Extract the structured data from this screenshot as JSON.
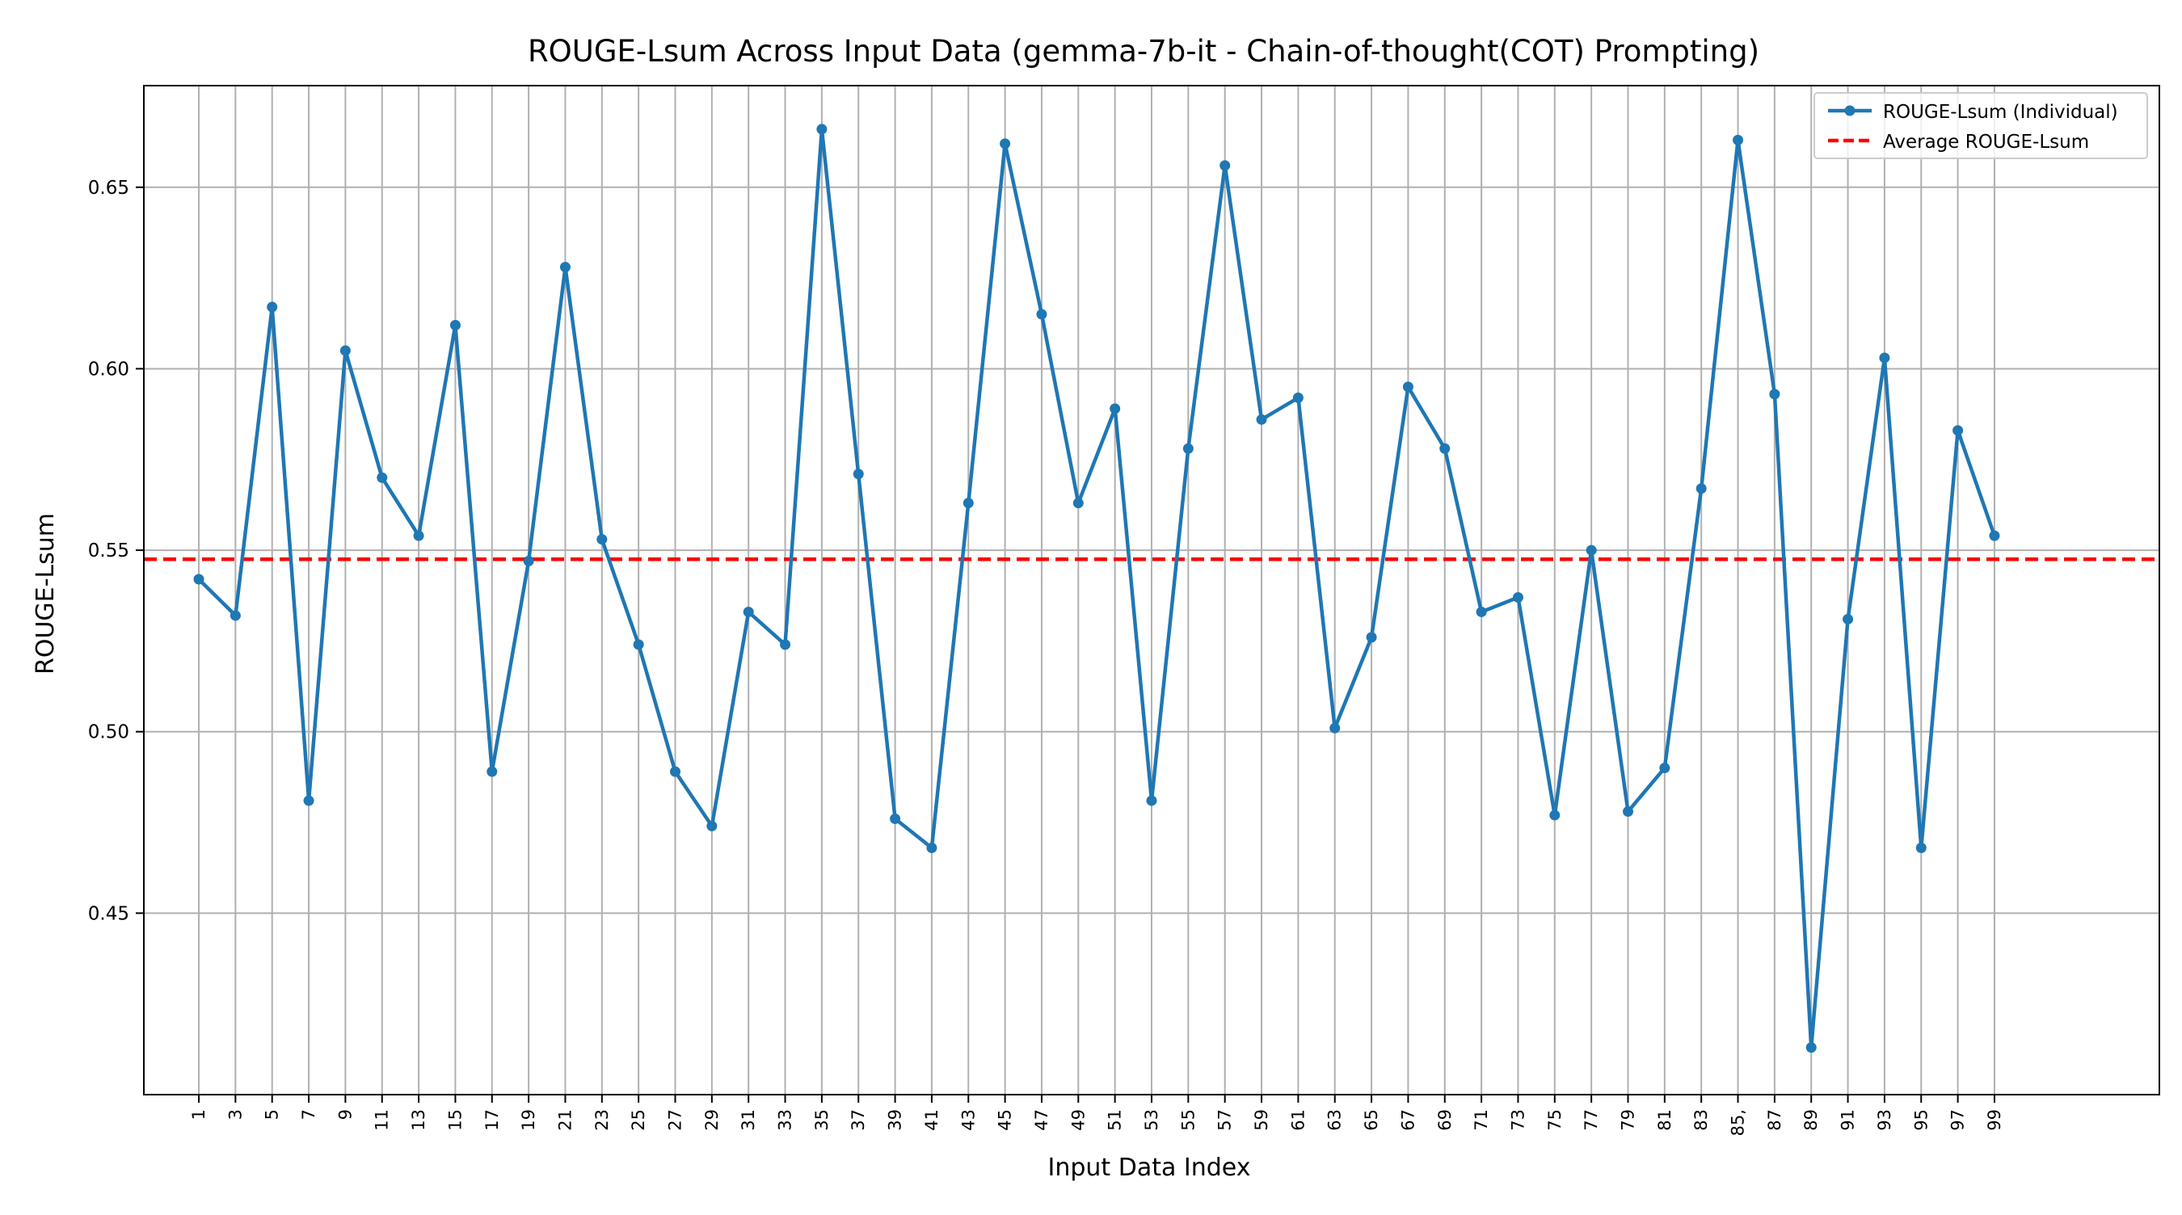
{
  "chart_data": {
    "type": "line",
    "title": "ROUGE-Lsum Across Input Data (gemma-7b-it - Chain-of-thought(COT) Prompting)",
    "xlabel": "Input Data Index",
    "ylabel": "ROUGE-Lsum",
    "x": [
      1,
      3,
      5,
      7,
      9,
      11,
      13,
      15,
      17,
      19,
      21,
      23,
      25,
      27,
      29,
      31,
      33,
      35,
      37,
      39,
      41,
      43,
      45,
      47,
      49,
      51,
      53,
      55,
      57,
      59,
      61,
      63,
      65,
      67,
      69,
      71,
      73,
      75,
      77,
      79,
      81,
      83,
      85,
      87,
      89,
      91,
      93,
      95,
      97,
      99
    ],
    "xticks": [
      "1",
      "3",
      "5",
      "7",
      "9",
      "11",
      "13",
      "15",
      "17",
      "19",
      "21",
      "23",
      "25",
      "27",
      "29",
      "31",
      "33",
      "35",
      "37",
      "39",
      "41",
      "43",
      "45",
      "47",
      "49",
      "51",
      "53",
      "55",
      "57",
      "59",
      "61",
      "63",
      "65",
      "67",
      "69",
      "71",
      "73",
      "75",
      "77",
      "79",
      "81",
      "83",
      "85,",
      "87",
      "89",
      "91",
      "93",
      "95",
      "97",
      "99"
    ],
    "xlim": [
      -2.0,
      108.0
    ],
    "ylim": [
      0.4,
      0.678
    ],
    "yticks": [
      0.45,
      0.5,
      0.55,
      0.6,
      0.65
    ],
    "ytick_labels": [
      "0.45",
      "0.50",
      "0.55",
      "0.60",
      "0.65"
    ],
    "series": [
      {
        "name": "ROUGE-Lsum (Individual)",
        "color": "#1f77b4",
        "marker": "circle",
        "values": [
          0.542,
          0.532,
          0.617,
          0.481,
          0.605,
          0.57,
          0.554,
          0.612,
          0.489,
          0.547,
          0.628,
          0.553,
          0.524,
          0.489,
          0.474,
          0.533,
          0.524,
          0.666,
          0.571,
          0.476,
          0.468,
          0.563,
          0.662,
          0.615,
          0.563,
          0.589,
          0.481,
          0.578,
          0.656,
          0.586,
          0.592,
          0.501,
          0.526,
          0.595,
          0.578,
          0.533,
          0.537,
          0.477,
          0.55,
          0.478,
          0.49,
          0.567,
          0.663,
          0.593,
          0.413,
          0.531,
          0.603,
          0.468,
          0.583,
          0.554
        ]
      }
    ],
    "average": {
      "name": "Average ROUGE-Lsum",
      "value": 0.5475,
      "color": "#ff0000",
      "style": "dashed"
    },
    "grid": true,
    "legend_position": "top-right"
  }
}
